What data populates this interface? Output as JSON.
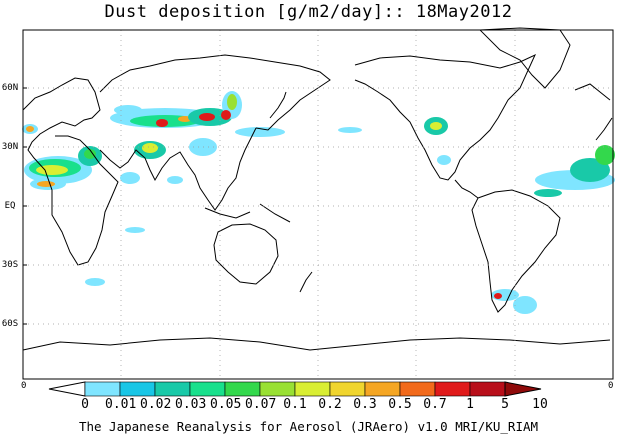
{
  "title": "Dust deposition [g/m2/day]:: 18May2012",
  "credit": "The Japanese Reanalysis for Aerosol (JRAero) v1.0 MRI/KU_RIAM",
  "lat_labels": [
    "60N",
    "30N",
    "EQ",
    "30S",
    "60S"
  ],
  "lon_edge_labels": [
    "0",
    "0"
  ],
  "colorbar": {
    "levels": [
      "0",
      "0.01",
      "0.02",
      "0.03",
      "0.05",
      "0.07",
      "0.1",
      "0.2",
      "0.3",
      "0.5",
      "0.7",
      "1",
      "5",
      "10"
    ],
    "colors": [
      "#ffffff",
      "#7fe5ff",
      "#19c6e6",
      "#19c9a8",
      "#19e08c",
      "#33d84c",
      "#99e033",
      "#d9ee33",
      "#f0d52e",
      "#f5a623",
      "#f26a1b",
      "#e01a1a",
      "#b80f1a",
      "#8f0a0a"
    ]
  },
  "colors": {
    "coast": "#000000",
    "grid": "#999999"
  }
}
